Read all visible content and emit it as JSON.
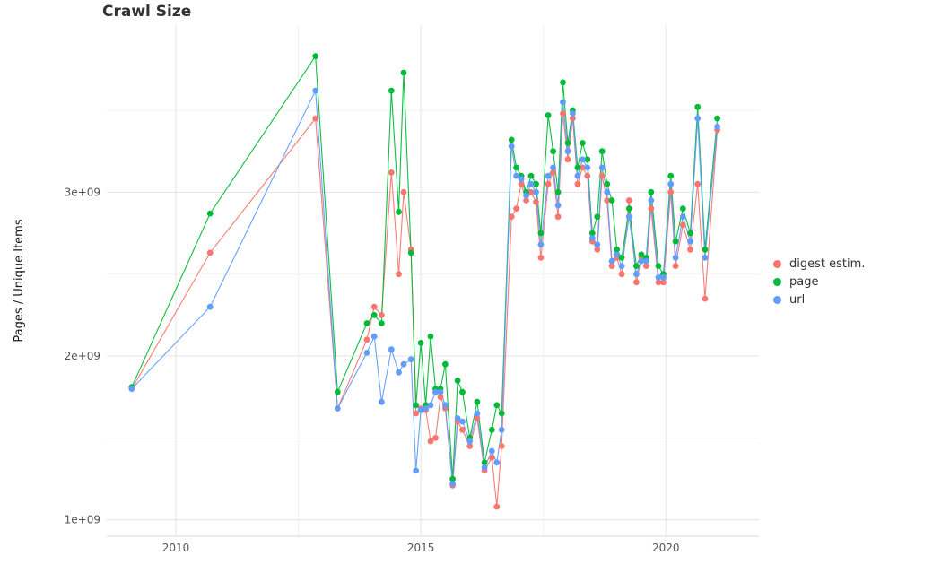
{
  "chart_data": {
    "type": "line",
    "title": "Crawl Size",
    "ylabel": "Pages / Unique Items",
    "xlabel": "",
    "y_unit": "count (axis labeled in 1e9)",
    "x_unit": "year (decimal)",
    "grid": true,
    "legend_position": "right",
    "xlim": [
      2008.59,
      2021.9
    ],
    "ylim": [
      0.9,
      4.02
    ],
    "x_ticks": [
      {
        "value": 2010,
        "label": "2010"
      },
      {
        "value": 2015,
        "label": "2015"
      },
      {
        "value": 2020,
        "label": "2020"
      }
    ],
    "y_ticks": [
      {
        "value": 1,
        "label": "1e+09"
      },
      {
        "value": 2,
        "label": "2e+09"
      },
      {
        "value": 3,
        "label": "3e+09"
      }
    ],
    "x_minor": [
      2012.5,
      2017.5
    ],
    "y_minor": [
      1.5,
      2.5,
      3.5
    ],
    "x": [
      2009.1,
      2010.7,
      2012.85,
      2013.3,
      2013.9,
      2014.05,
      2014.2,
      2014.4,
      2014.55,
      2014.65,
      2014.8,
      2014.9,
      2015.0,
      2015.1,
      2015.2,
      2015.3,
      2015.4,
      2015.5,
      2015.65,
      2015.75,
      2015.85,
      2016.0,
      2016.15,
      2016.3,
      2016.45,
      2016.55,
      2016.65,
      2016.85,
      2016.95,
      2017.05,
      2017.15,
      2017.25,
      2017.35,
      2017.45,
      2017.6,
      2017.7,
      2017.8,
      2017.9,
      2018.0,
      2018.1,
      2018.2,
      2018.3,
      2018.4,
      2018.5,
      2018.6,
      2018.7,
      2018.8,
      2018.9,
      2019.0,
      2019.1,
      2019.25,
      2019.4,
      2019.5,
      2019.6,
      2019.7,
      2019.85,
      2019.95,
      2020.1,
      2020.2,
      2020.35,
      2020.5,
      2020.65,
      2020.8,
      2021.05
    ],
    "series": [
      {
        "name": "digest estim.",
        "color": "#F8766D",
        "values": [
          1.8,
          2.63,
          3.45,
          1.68,
          2.1,
          2.3,
          2.25,
          3.12,
          2.5,
          3.0,
          2.65,
          1.65,
          1.68,
          1.67,
          1.48,
          1.5,
          1.75,
          1.68,
          1.21,
          1.6,
          1.55,
          1.45,
          1.62,
          1.3,
          1.38,
          1.08,
          1.45,
          2.85,
          2.9,
          3.05,
          2.95,
          3.0,
          2.94,
          2.6,
          3.05,
          3.12,
          2.85,
          3.48,
          3.2,
          3.45,
          3.05,
          3.15,
          3.1,
          2.7,
          2.65,
          3.1,
          2.95,
          2.55,
          2.6,
          2.5,
          2.95,
          2.45,
          2.6,
          2.55,
          2.9,
          2.45,
          2.45,
          3.0,
          2.55,
          2.8,
          2.65,
          3.05,
          2.35,
          3.38
        ]
      },
      {
        "name": "page",
        "color": "#00BA38",
        "values": [
          1.81,
          2.87,
          3.83,
          1.78,
          2.2,
          2.25,
          2.2,
          3.62,
          2.88,
          3.73,
          2.63,
          1.7,
          2.08,
          1.7,
          2.12,
          1.8,
          1.8,
          1.95,
          1.25,
          1.85,
          1.78,
          1.5,
          1.72,
          1.35,
          1.55,
          1.7,
          1.65,
          3.32,
          3.15,
          3.1,
          3.0,
          3.1,
          3.05,
          2.75,
          3.47,
          3.25,
          3.0,
          3.67,
          3.3,
          3.5,
          3.15,
          3.3,
          3.2,
          2.75,
          2.85,
          3.25,
          3.05,
          2.95,
          2.65,
          2.6,
          2.9,
          2.55,
          2.62,
          2.6,
          3.0,
          2.55,
          2.5,
          3.1,
          2.7,
          2.9,
          2.75,
          3.52,
          2.65,
          3.45
        ]
      },
      {
        "name": "url",
        "color": "#619CFF",
        "values": [
          1.8,
          2.3,
          3.62,
          1.68,
          2.02,
          2.12,
          1.72,
          2.04,
          1.9,
          1.95,
          1.98,
          1.3,
          1.67,
          1.68,
          1.7,
          1.78,
          1.78,
          1.7,
          1.22,
          1.62,
          1.6,
          1.48,
          1.65,
          1.32,
          1.42,
          1.35,
          1.55,
          3.28,
          3.1,
          3.08,
          2.98,
          3.05,
          3.0,
          2.68,
          3.1,
          3.15,
          2.92,
          3.55,
          3.25,
          3.48,
          3.1,
          3.2,
          3.15,
          2.72,
          2.68,
          3.15,
          3.0,
          2.58,
          2.62,
          2.55,
          2.85,
          2.5,
          2.58,
          2.58,
          2.95,
          2.48,
          2.48,
          3.05,
          2.6,
          2.85,
          2.7,
          3.45,
          2.6,
          3.4
        ]
      }
    ]
  },
  "style": {
    "grid_major_color": "#e4e4e4",
    "grid_minor_color": "#f2f2f2",
    "axis_text_color": "#555555",
    "panel_border_color": "#d9d9d9"
  }
}
